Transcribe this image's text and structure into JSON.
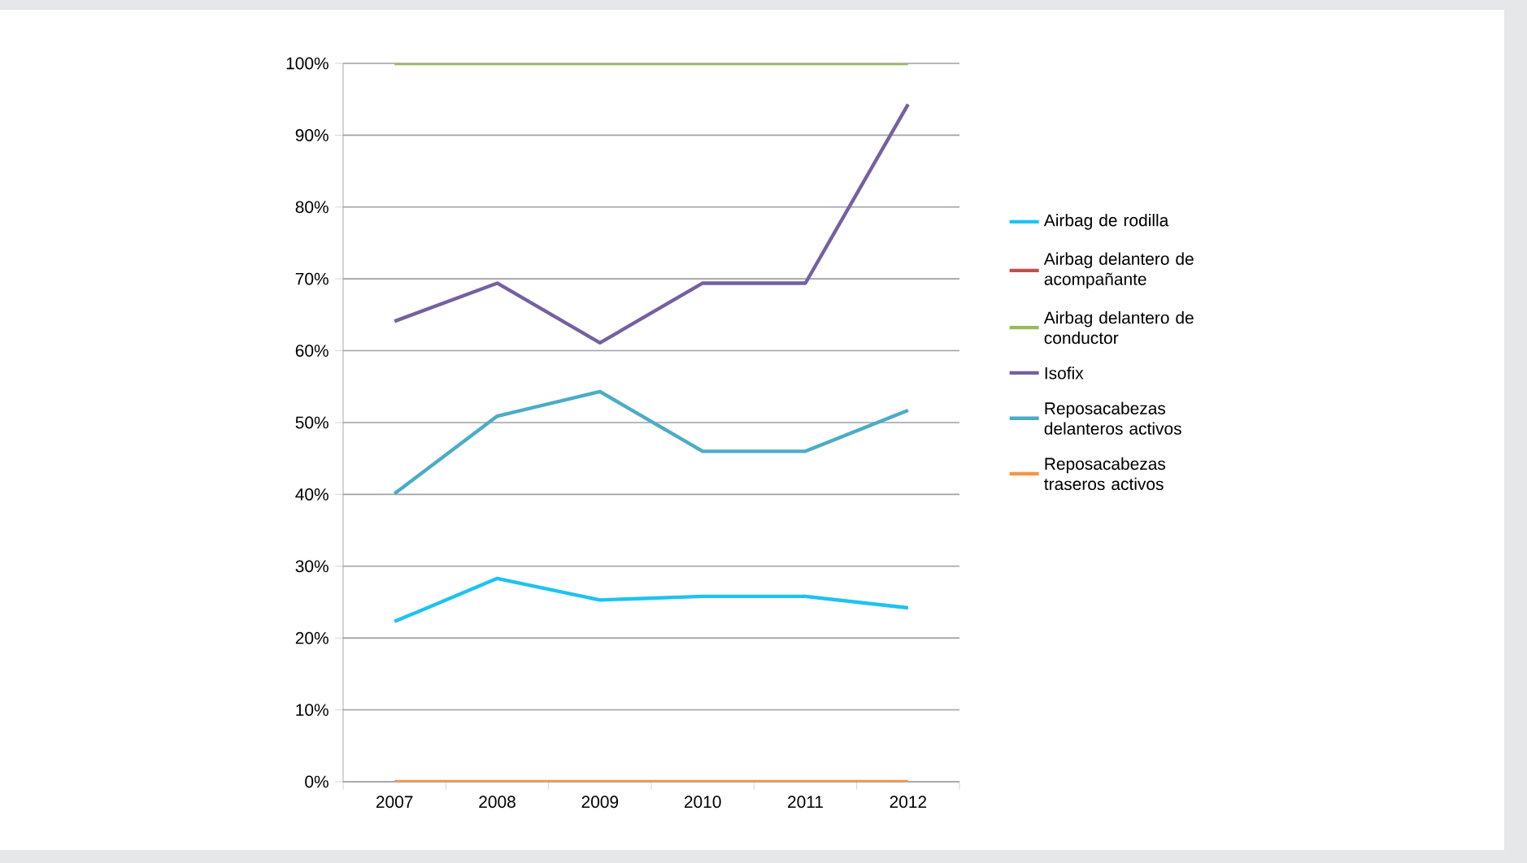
{
  "chart_data": {
    "type": "line",
    "categories": [
      "2007",
      "2008",
      "2009",
      "2010",
      "2011",
      "2012"
    ],
    "ylim": [
      0,
      100
    ],
    "yticks": [
      {
        "value": 0,
        "label": "0%"
      },
      {
        "value": 10,
        "label": "10%"
      },
      {
        "value": 20,
        "label": "20%"
      },
      {
        "value": 30,
        "label": "30%"
      },
      {
        "value": 40,
        "label": "40%"
      },
      {
        "value": 50,
        "label": "50%"
      },
      {
        "value": 60,
        "label": "60%"
      },
      {
        "value": 70,
        "label": "70%"
      },
      {
        "value": 80,
        "label": "80%"
      },
      {
        "value": 90,
        "label": "90%"
      },
      {
        "value": 100,
        "label": "100%"
      }
    ],
    "grid": "y",
    "legend": "right",
    "marker": "none",
    "line_style": "solid",
    "series": [
      {
        "name": "Airbag de rodilla",
        "color": "#1dc3f0",
        "values": [
          22.3,
          28.3,
          25.3,
          25.8,
          25.8,
          24.2
        ]
      },
      {
        "name": "Airbag delantero de acompañante",
        "color": "#c0504d",
        "values": [
          null,
          null,
          null,
          null,
          null,
          null
        ]
      },
      {
        "name": "Airbag delantero de conductor",
        "color": "#9bbb59",
        "values": [
          100,
          100,
          100,
          100,
          100,
          100
        ]
      },
      {
        "name": "Isofix",
        "color": "#7560a0",
        "values": [
          64.1,
          69.4,
          61.1,
          69.4,
          69.4,
          94.3
        ]
      },
      {
        "name": "Reposacabezas delanteros activos",
        "color": "#4bacc6",
        "values": [
          40.1,
          50.9,
          54.3,
          46.0,
          46.0,
          51.7
        ]
      },
      {
        "name": "Reposacabezas traseros activos",
        "color": "#f79646",
        "values": [
          0,
          0,
          0,
          0,
          0,
          0
        ]
      }
    ]
  }
}
